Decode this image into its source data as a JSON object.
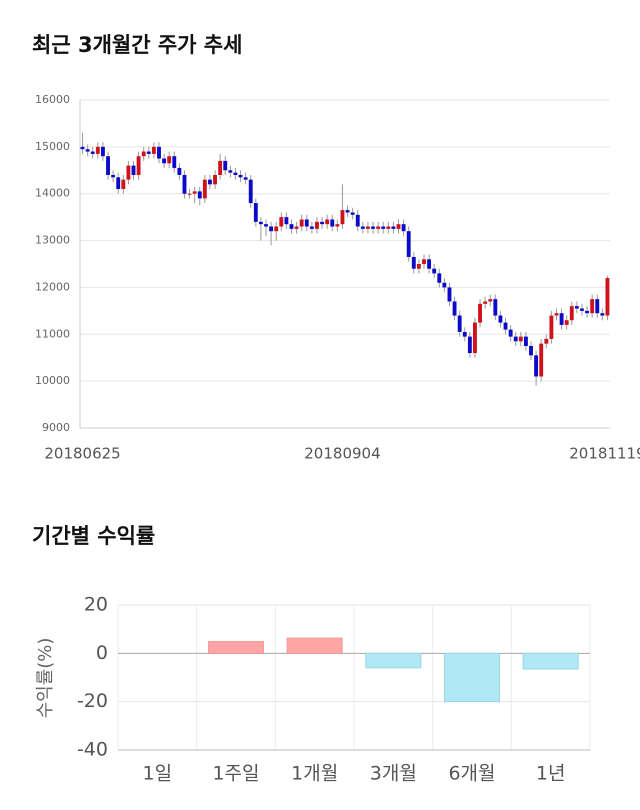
{
  "chart_data": [
    {
      "type": "candlestick",
      "title": "최근 3개월간 주가 추세",
      "categories": [
        "20180625",
        null,
        null,
        null,
        null,
        null,
        null,
        null,
        null,
        null,
        null,
        null,
        null,
        null,
        null,
        null,
        null,
        null,
        null,
        null,
        null,
        null,
        null,
        null,
        null,
        null,
        null,
        null,
        null,
        null,
        null,
        null,
        null,
        null,
        null,
        null,
        null,
        null,
        null,
        null,
        null,
        null,
        null,
        null,
        null,
        null,
        null,
        null,
        null,
        null,
        null,
        "20180904",
        null,
        null,
        null,
        null,
        null,
        null,
        null,
        null,
        null,
        null,
        null,
        null,
        null,
        null,
        null,
        null,
        null,
        null,
        null,
        null,
        null,
        null,
        null,
        null,
        null,
        null,
        null,
        null,
        null,
        null,
        null,
        null,
        null,
        null,
        null,
        null,
        null,
        null,
        null,
        null,
        null,
        null,
        null,
        null,
        null,
        null,
        null,
        null,
        null,
        null,
        null,
        "20181119"
      ],
      "open": [
        15000,
        14950,
        14900,
        14850,
        15000,
        14800,
        14400,
        14350,
        14100,
        14300,
        14600,
        14400,
        14800,
        14900,
        14850,
        15000,
        14750,
        14650,
        14800,
        14550,
        14400,
        14000,
        14000,
        14050,
        13900,
        14300,
        14200,
        14400,
        14700,
        14500,
        14450,
        14400,
        14350,
        14300,
        13800,
        13400,
        13350,
        13300,
        13200,
        13300,
        13500,
        13350,
        13250,
        13300,
        13450,
        13300,
        13250,
        13400,
        13350,
        13450,
        13300,
        13350,
        13650,
        13600,
        13550,
        13300,
        13250,
        13300,
        13250,
        13300,
        13250,
        13300,
        13250,
        13350,
        13200,
        12650,
        12400,
        12500,
        12600,
        12400,
        12300,
        12100,
        12000,
        11700,
        11400,
        11050,
        10950,
        10600,
        11250,
        11650,
        11700,
        11750,
        11400,
        11250,
        11100,
        10950,
        10850,
        10950,
        10750,
        10550,
        10100,
        10800,
        10900,
        11400,
        11450,
        11200,
        11300,
        11600,
        11550,
        11500,
        11450,
        11750,
        11450,
        11400
      ],
      "high": [
        15300,
        15050,
        15000,
        15100,
        15100,
        14900,
        14500,
        14450,
        14400,
        14700,
        14700,
        14900,
        15000,
        15000,
        15100,
        15100,
        14850,
        14900,
        14900,
        14650,
        14500,
        14100,
        14150,
        14150,
        14400,
        14400,
        14500,
        14850,
        14800,
        14600,
        14550,
        14500,
        14450,
        14400,
        13900,
        13500,
        13450,
        13400,
        13400,
        13600,
        13600,
        13450,
        13400,
        13550,
        13550,
        13400,
        13500,
        13500,
        13550,
        13550,
        13450,
        14200,
        13750,
        13700,
        13650,
        13400,
        13400,
        13400,
        13400,
        13400,
        13400,
        13400,
        13450,
        13450,
        13300,
        12750,
        12600,
        12700,
        12700,
        12500,
        12400,
        12200,
        12100,
        11800,
        11500,
        11150,
        11050,
        11350,
        11750,
        11800,
        11850,
        11850,
        11500,
        11350,
        11200,
        11050,
        11050,
        11050,
        10850,
        10650,
        10900,
        11000,
        11500,
        11550,
        11550,
        11400,
        11700,
        11700,
        11650,
        11600,
        11850,
        11850,
        11550,
        12250
      ],
      "low": [
        14850,
        14800,
        14750,
        14750,
        14700,
        14300,
        14250,
        14000,
        14000,
        14200,
        14300,
        14300,
        14700,
        14750,
        14750,
        14650,
        14550,
        14550,
        14450,
        14300,
        13900,
        13900,
        13800,
        13750,
        13800,
        14100,
        14100,
        14300,
        14400,
        14350,
        14300,
        14250,
        14200,
        13700,
        13300,
        13000,
        13100,
        12900,
        13000,
        13200,
        13250,
        13150,
        13150,
        13200,
        13200,
        13150,
        13150,
        13250,
        13250,
        13200,
        13200,
        13250,
        13500,
        13450,
        13200,
        13150,
        13150,
        13150,
        13150,
        13150,
        13150,
        13150,
        13150,
        13100,
        12550,
        12300,
        12300,
        12400,
        12300,
        12200,
        12000,
        11900,
        11600,
        11300,
        10950,
        10850,
        10500,
        10500,
        11150,
        11550,
        11600,
        11300,
        11150,
        11000,
        10850,
        10750,
        10750,
        10650,
        10450,
        9900,
        10000,
        10700,
        10800,
        11300,
        11100,
        11100,
        11200,
        11450,
        11400,
        11350,
        11350,
        11350,
        11300,
        11300
      ],
      "close": [
        14950,
        14900,
        14850,
        15000,
        14800,
        14400,
        14350,
        14100,
        14300,
        14600,
        14400,
        14800,
        14900,
        14850,
        15000,
        14750,
        14650,
        14800,
        14550,
        14400,
        14000,
        14000,
        14050,
        13900,
        14300,
        14200,
        14400,
        14700,
        14500,
        14450,
        14400,
        14350,
        14300,
        13800,
        13400,
        13350,
        13300,
        13200,
        13300,
        13500,
        13350,
        13250,
        13300,
        13450,
        13300,
        13250,
        13400,
        13350,
        13450,
        13300,
        13350,
        13650,
        13600,
        13550,
        13300,
        13250,
        13300,
        13250,
        13300,
        13250,
        13300,
        13250,
        13350,
        13200,
        12650,
        12400,
        12500,
        12600,
        12400,
        12300,
        12100,
        12000,
        11700,
        11400,
        11050,
        10950,
        10600,
        11250,
        11650,
        11700,
        11750,
        11400,
        11250,
        11100,
        10950,
        10850,
        10950,
        10750,
        10550,
        10100,
        10800,
        10900,
        11400,
        11450,
        11200,
        11300,
        11600,
        11550,
        11500,
        11450,
        11750,
        11450,
        11400,
        12200
      ],
      "up_color": "#d0121b",
      "down_color": "#0a0ac8",
      "ylim": [
        9000,
        16000
      ],
      "yticks": [
        9000,
        10000,
        11000,
        12000,
        13000,
        14000,
        15000,
        16000
      ],
      "grid": true
    },
    {
      "type": "bar",
      "title": "기간별 수익률",
      "ylabel": "수익률(%)",
      "categories": [
        "1일",
        "1주일",
        "1개월",
        "3개월",
        "6개월",
        "1년"
      ],
      "values": [
        0,
        4.9,
        6.3,
        -6.0,
        -20.0,
        -6.5
      ],
      "positive_color": "#ffa5a5",
      "negative_color": "#aee9f5",
      "ylim": [
        -40,
        20
      ],
      "yticks": [
        -40,
        -20,
        0,
        20
      ],
      "grid": true
    }
  ]
}
